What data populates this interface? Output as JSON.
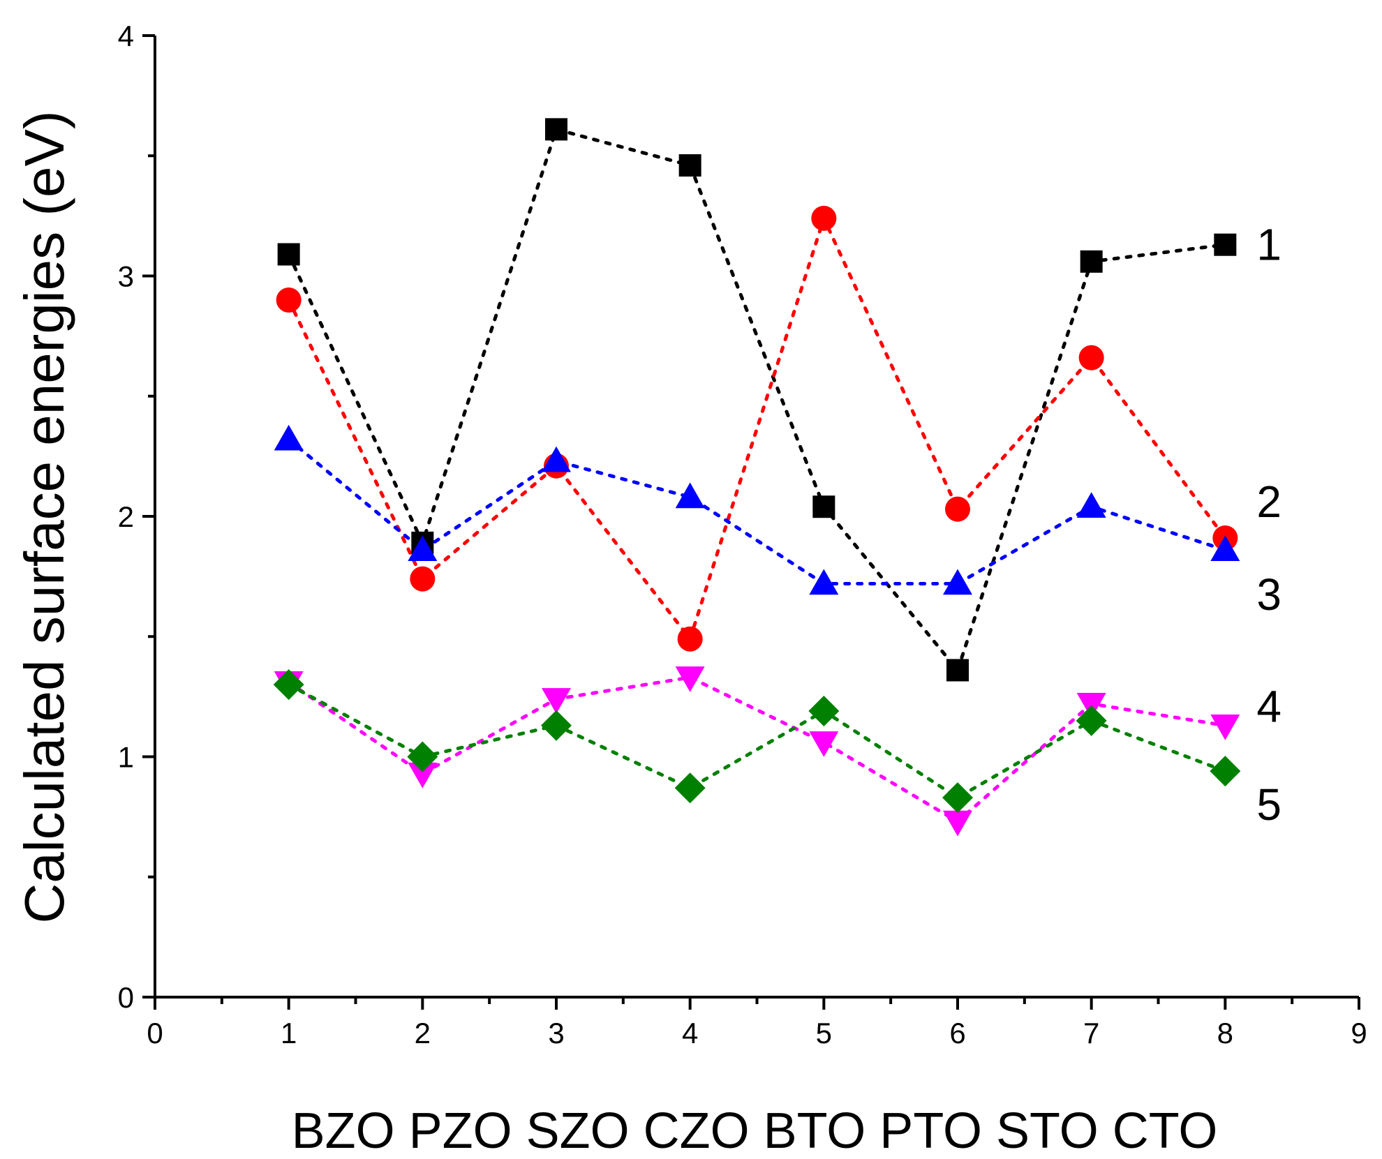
{
  "chart_data": {
    "type": "scatter",
    "title": "",
    "ylabel": "Calculated surface energies (eV)",
    "xlabel": "BZO PZO SZO CZO BTO PTO STO CTO",
    "xlim": [
      0,
      9
    ],
    "ylim": [
      0,
      4
    ],
    "x_ticks": [
      "0",
      "1",
      "2",
      "3",
      "4",
      "5",
      "6",
      "7",
      "8",
      "9"
    ],
    "y_ticks": [
      "0",
      "1",
      "2",
      "3",
      "4"
    ],
    "x": [
      1,
      2,
      3,
      4,
      5,
      6,
      7,
      8
    ],
    "categories": [
      "BZO",
      "PZO",
      "SZO",
      "CZO",
      "BTO",
      "PTO",
      "STO",
      "CTO"
    ],
    "line_style": "dotted",
    "series": [
      {
        "name": "1",
        "label": "1",
        "marker": "square",
        "color": "#000000",
        "values": [
          3.09,
          1.89,
          3.61,
          3.46,
          2.04,
          1.36,
          3.06,
          3.13
        ]
      },
      {
        "name": "2",
        "label": "2",
        "marker": "circle",
        "color": "#ff0000",
        "values": [
          2.9,
          1.74,
          2.21,
          1.49,
          3.24,
          2.03,
          2.66,
          1.91
        ]
      },
      {
        "name": "3",
        "label": "3",
        "marker": "triangle-up",
        "color": "#0000ff",
        "values": [
          2.32,
          1.86,
          2.23,
          2.08,
          1.72,
          1.72,
          2.04,
          1.86
        ]
      },
      {
        "name": "4",
        "label": "4",
        "marker": "triangle-down",
        "color": "#ff00ff",
        "values": [
          1.31,
          0.93,
          1.24,
          1.33,
          1.06,
          0.73,
          1.22,
          1.13
        ]
      },
      {
        "name": "5",
        "label": "5",
        "marker": "diamond",
        "color": "#008000",
        "values": [
          1.3,
          1.0,
          1.13,
          0.87,
          1.19,
          0.83,
          1.15,
          0.94
        ]
      }
    ]
  }
}
